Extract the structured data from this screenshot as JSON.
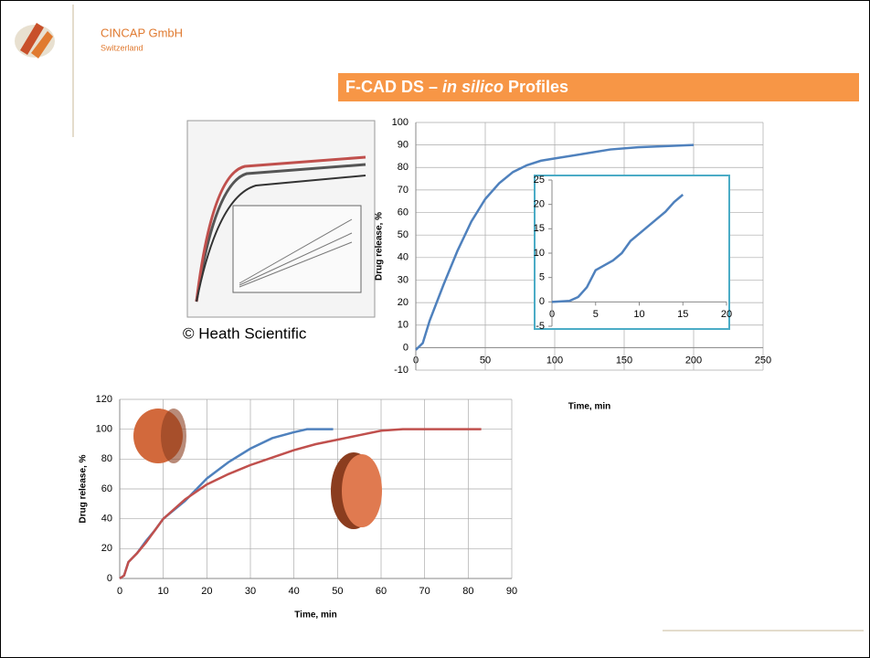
{
  "header": {
    "company": "CINCAP GmbH",
    "country": "Switzerland",
    "title": {
      "part1": "F-CAD DS – ",
      "italic": "in silico",
      "part2": " Profiles"
    }
  },
  "image_caption": "© Heath Scientific",
  "chart_data": [
    {
      "type": "line",
      "xlabel": "Time, min",
      "ylabel": "Drug release, %",
      "xlim": [
        0,
        250
      ],
      "xticks": [
        0,
        50,
        100,
        150,
        200,
        250
      ],
      "ylim": [
        -10,
        100
      ],
      "yticks": [
        -10,
        0,
        10,
        20,
        30,
        40,
        50,
        60,
        70,
        80,
        90,
        100
      ],
      "grid": true,
      "series": [
        {
          "color": "#4f81bd",
          "x": [
            0,
            5,
            10,
            20,
            30,
            40,
            50,
            60,
            70,
            80,
            90,
            100,
            120,
            140,
            160,
            180,
            200
          ],
          "values": [
            -1,
            2,
            12,
            28,
            43,
            56,
            66,
            73,
            78,
            81,
            83,
            84,
            86,
            88,
            89,
            89.5,
            90
          ]
        }
      ]
    },
    {
      "type": "line",
      "xlim": [
        0,
        20
      ],
      "xticks": [
        0,
        5,
        10,
        15,
        20
      ],
      "ylim": [
        -5,
        25
      ],
      "yticks": [
        -5,
        0,
        5,
        10,
        15,
        20,
        25
      ],
      "grid": false,
      "series": [
        {
          "color": "#4f81bd",
          "x": [
            0,
            2,
            3,
            4,
            5,
            6,
            7,
            8,
            9,
            10,
            11,
            12,
            13,
            14,
            15
          ],
          "values": [
            0,
            0.2,
            1,
            3,
            6.5,
            7.5,
            8.5,
            10,
            12.5,
            14,
            15.5,
            17,
            18.5,
            20.5,
            22
          ]
        }
      ]
    },
    {
      "type": "line",
      "xlabel": "Time, min",
      "ylabel": "Drug release, %",
      "xlim": [
        0,
        90
      ],
      "xticks": [
        0,
        10,
        20,
        30,
        40,
        50,
        60,
        70,
        80,
        90
      ],
      "ylim": [
        0,
        120
      ],
      "yticks": [
        0,
        20,
        40,
        60,
        80,
        100,
        120
      ],
      "grid": true,
      "series": [
        {
          "color": "#4f81bd",
          "x": [
            0,
            1,
            2,
            4,
            6,
            8,
            10,
            15,
            20,
            25,
            30,
            35,
            40,
            43,
            49
          ],
          "values": [
            0,
            2,
            11,
            17,
            25,
            32,
            40,
            52,
            67,
            78,
            87,
            94,
            98,
            100,
            100
          ]
        },
        {
          "color": "#c0504d",
          "x": [
            0,
            1,
            2,
            4,
            6,
            8,
            10,
            15,
            20,
            25,
            30,
            35,
            40,
            45,
            50,
            55,
            60,
            65,
            70,
            83
          ],
          "values": [
            0,
            2,
            11,
            17,
            24,
            32,
            40,
            53,
            63,
            70,
            76,
            81,
            86,
            90,
            93,
            96,
            99,
            100,
            100,
            100
          ]
        }
      ]
    }
  ]
}
